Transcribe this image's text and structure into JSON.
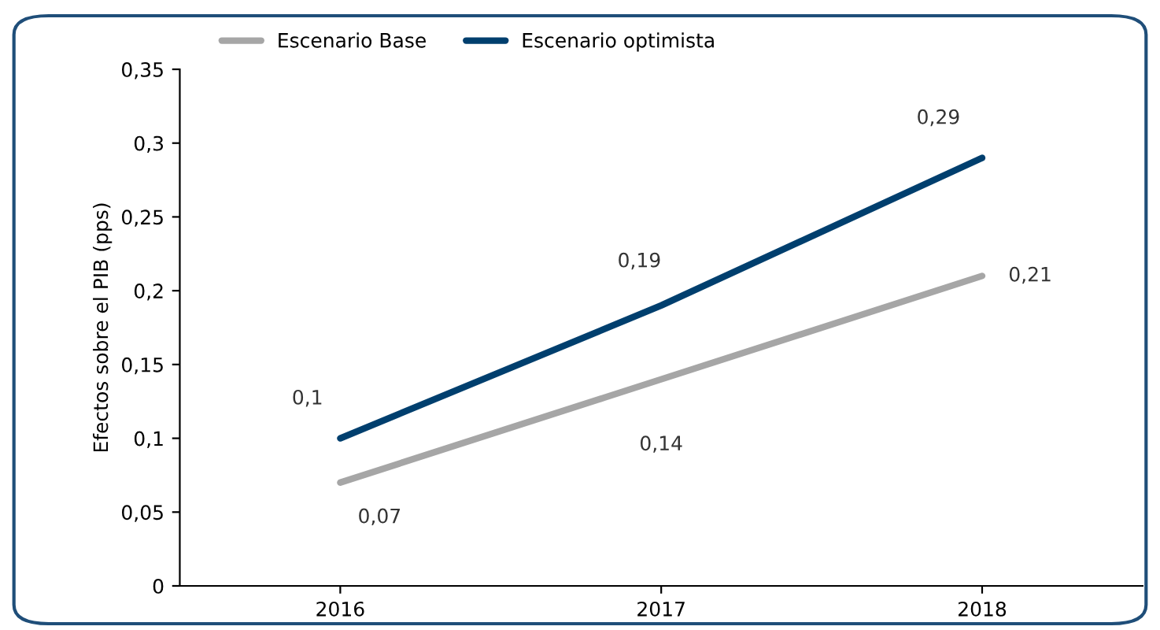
{
  "chart_data": {
    "type": "line",
    "ylabel": "Efectos sobre el PIB (pps)",
    "categories": [
      "2016",
      "2017",
      "2018"
    ],
    "series": [
      {
        "name": "Escenario Base",
        "color": "#a6a6a6",
        "values": [
          0.07,
          0.14,
          0.21
        ],
        "value_labels": [
          "0,07",
          "0,14",
          "0,21"
        ]
      },
      {
        "name": "Escenario optimista",
        "color": "#003f6e",
        "values": [
          0.1,
          0.19,
          0.29
        ],
        "value_labels": [
          "0,1",
          "0,19",
          "0,29"
        ]
      }
    ],
    "ylim": [
      0,
      0.35
    ],
    "yticks": [
      0,
      {
        "value": 0.05,
        "label": "0,05"
      },
      {
        "value": 0.1,
        "label": "0,1"
      },
      {
        "value": 0.15,
        "label": "0,15"
      },
      {
        "value": 0.2,
        "label": "0,2"
      },
      {
        "value": 0.25,
        "label": "0,25"
      },
      {
        "value": 0.3,
        "label": "0,3"
      },
      {
        "value": 0.35,
        "label": "0,35"
      }
    ],
    "grid": false,
    "legend": "top",
    "marker": "none",
    "line_style": "solid"
  }
}
